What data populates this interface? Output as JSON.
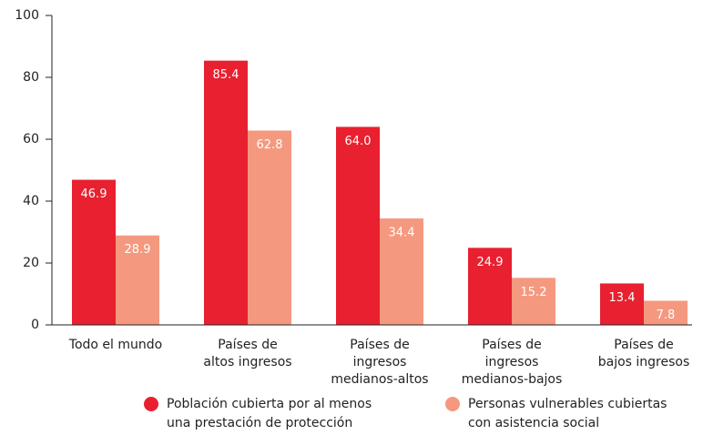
{
  "chart_data": {
    "type": "bar",
    "categories": [
      [
        "Todo el mundo"
      ],
      [
        "Países de",
        "altos ingresos"
      ],
      [
        "Países de",
        "ingresos",
        "medianos-altos"
      ],
      [
        "Países de",
        "ingresos",
        "medianos-bajos"
      ],
      [
        "Países de",
        "bajos ingresos"
      ]
    ],
    "series": [
      {
        "name": [
          "Población cubierta por al menos",
          "una prestación de protección"
        ],
        "color": "#e8202f",
        "values": [
          46.9,
          85.4,
          64.0,
          24.9,
          13.4
        ],
        "value_labels": [
          "46.9",
          "85.4",
          "64.0",
          "24.9",
          "13.4"
        ]
      },
      {
        "name": [
          "Personas vulnerables cubiertas",
          "con asistencia social"
        ],
        "color": "#f4997f",
        "values": [
          28.9,
          62.8,
          34.4,
          15.2,
          7.8
        ],
        "value_labels": [
          "28.9",
          "62.8",
          "34.4",
          "15.2",
          "7.8"
        ]
      }
    ],
    "ylim": [
      0,
      100
    ],
    "yticks": [
      0,
      20,
      40,
      60,
      80,
      100
    ],
    "grid": false
  }
}
